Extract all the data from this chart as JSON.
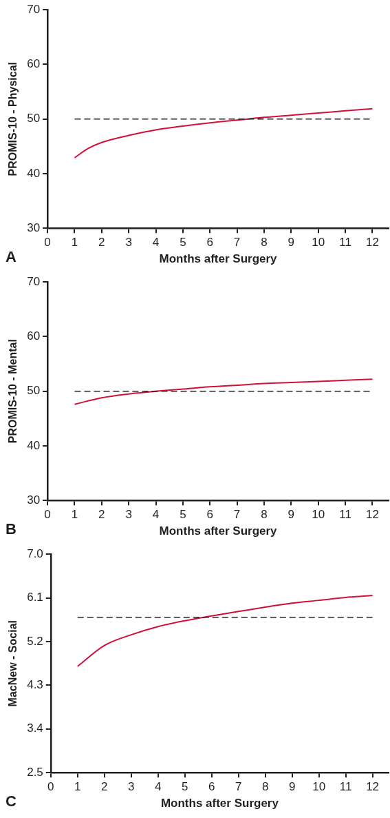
{
  "chart_data": [
    {
      "type": "line",
      "xlabel": "Months after Surgery",
      "ylabel": "PROMIS-10 - Physical",
      "annotations": [
        "A"
      ],
      "x": [
        1,
        1.5,
        2,
        3,
        4,
        5,
        6,
        7,
        8,
        9,
        10,
        11,
        12
      ],
      "series": [
        {
          "color": "#d0103a",
          "values": [
            42.9,
            44.6,
            45.7,
            47,
            48,
            48.7,
            49.3,
            49.8,
            50.3,
            50.7,
            51.1,
            51.5,
            51.9
          ]
        }
      ],
      "xlim": [
        0,
        12.6
      ],
      "xticks": [
        0,
        1,
        2,
        3,
        4,
        5,
        6,
        7,
        8,
        9,
        10,
        11,
        12
      ],
      "ylim": [
        30,
        70
      ],
      "yticks": [
        30,
        40,
        50,
        60,
        70
      ],
      "grid": false,
      "legend": false,
      "ref_lines": [
        {
          "axis": "y",
          "value": 50,
          "line_style": "dashed",
          "color": "#231f20"
        }
      ]
    },
    {
      "type": "line",
      "xlabel": "Months after Surgery",
      "ylabel": "PROMIS-10 - Mental",
      "annotations": [
        "B"
      ],
      "x": [
        1,
        2,
        3,
        4,
        5,
        6,
        7,
        8,
        9,
        10,
        11,
        12
      ],
      "series": [
        {
          "color": "#d0103a",
          "values": [
            47.6,
            48.8,
            49.5,
            50,
            50.4,
            50.8,
            51.1,
            51.4,
            51.6,
            51.8,
            52,
            52.2
          ]
        }
      ],
      "xlim": [
        0,
        12.6
      ],
      "xticks": [
        0,
        1,
        2,
        3,
        4,
        5,
        6,
        7,
        8,
        9,
        10,
        11,
        12
      ],
      "ylim": [
        30,
        70
      ],
      "yticks": [
        30,
        40,
        50,
        60,
        70
      ],
      "grid": false,
      "legend": false,
      "ref_lines": [
        {
          "axis": "y",
          "value": 50,
          "line_style": "dashed",
          "color": "#231f20"
        }
      ]
    },
    {
      "type": "line",
      "xlabel": "Months after Surgery",
      "ylabel": "MacNew - Social",
      "annotations": [
        "C"
      ],
      "x": [
        1,
        2,
        3,
        4,
        5,
        6,
        7,
        8,
        9,
        10,
        11,
        12
      ],
      "series": [
        {
          "color": "#d0103a",
          "values": [
            4.69,
            5.12,
            5.34,
            5.51,
            5.63,
            5.73,
            5.82,
            5.91,
            5.99,
            6.05,
            6.11,
            6.15
          ]
        }
      ],
      "xlim": [
        0,
        12.6
      ],
      "xticks": [
        0,
        1,
        2,
        3,
        4,
        5,
        6,
        7,
        8,
        9,
        10,
        11,
        12
      ],
      "ylim": [
        2.5,
        7.0
      ],
      "yticks": [
        {
          "value": 2.5,
          "label": "2.5"
        },
        {
          "value": 3.4,
          "label": "3.4"
        },
        {
          "value": 4.3,
          "label": "4.3"
        },
        {
          "value": 5.2,
          "label": "5.2"
        },
        {
          "value": 6.1,
          "label": "6.1"
        },
        {
          "value": 7.0,
          "label": "7.0"
        }
      ],
      "grid": false,
      "legend": false,
      "ref_lines": [
        {
          "axis": "y",
          "value": 5.7,
          "line_style": "dashed",
          "color": "#231f20"
        }
      ]
    }
  ]
}
